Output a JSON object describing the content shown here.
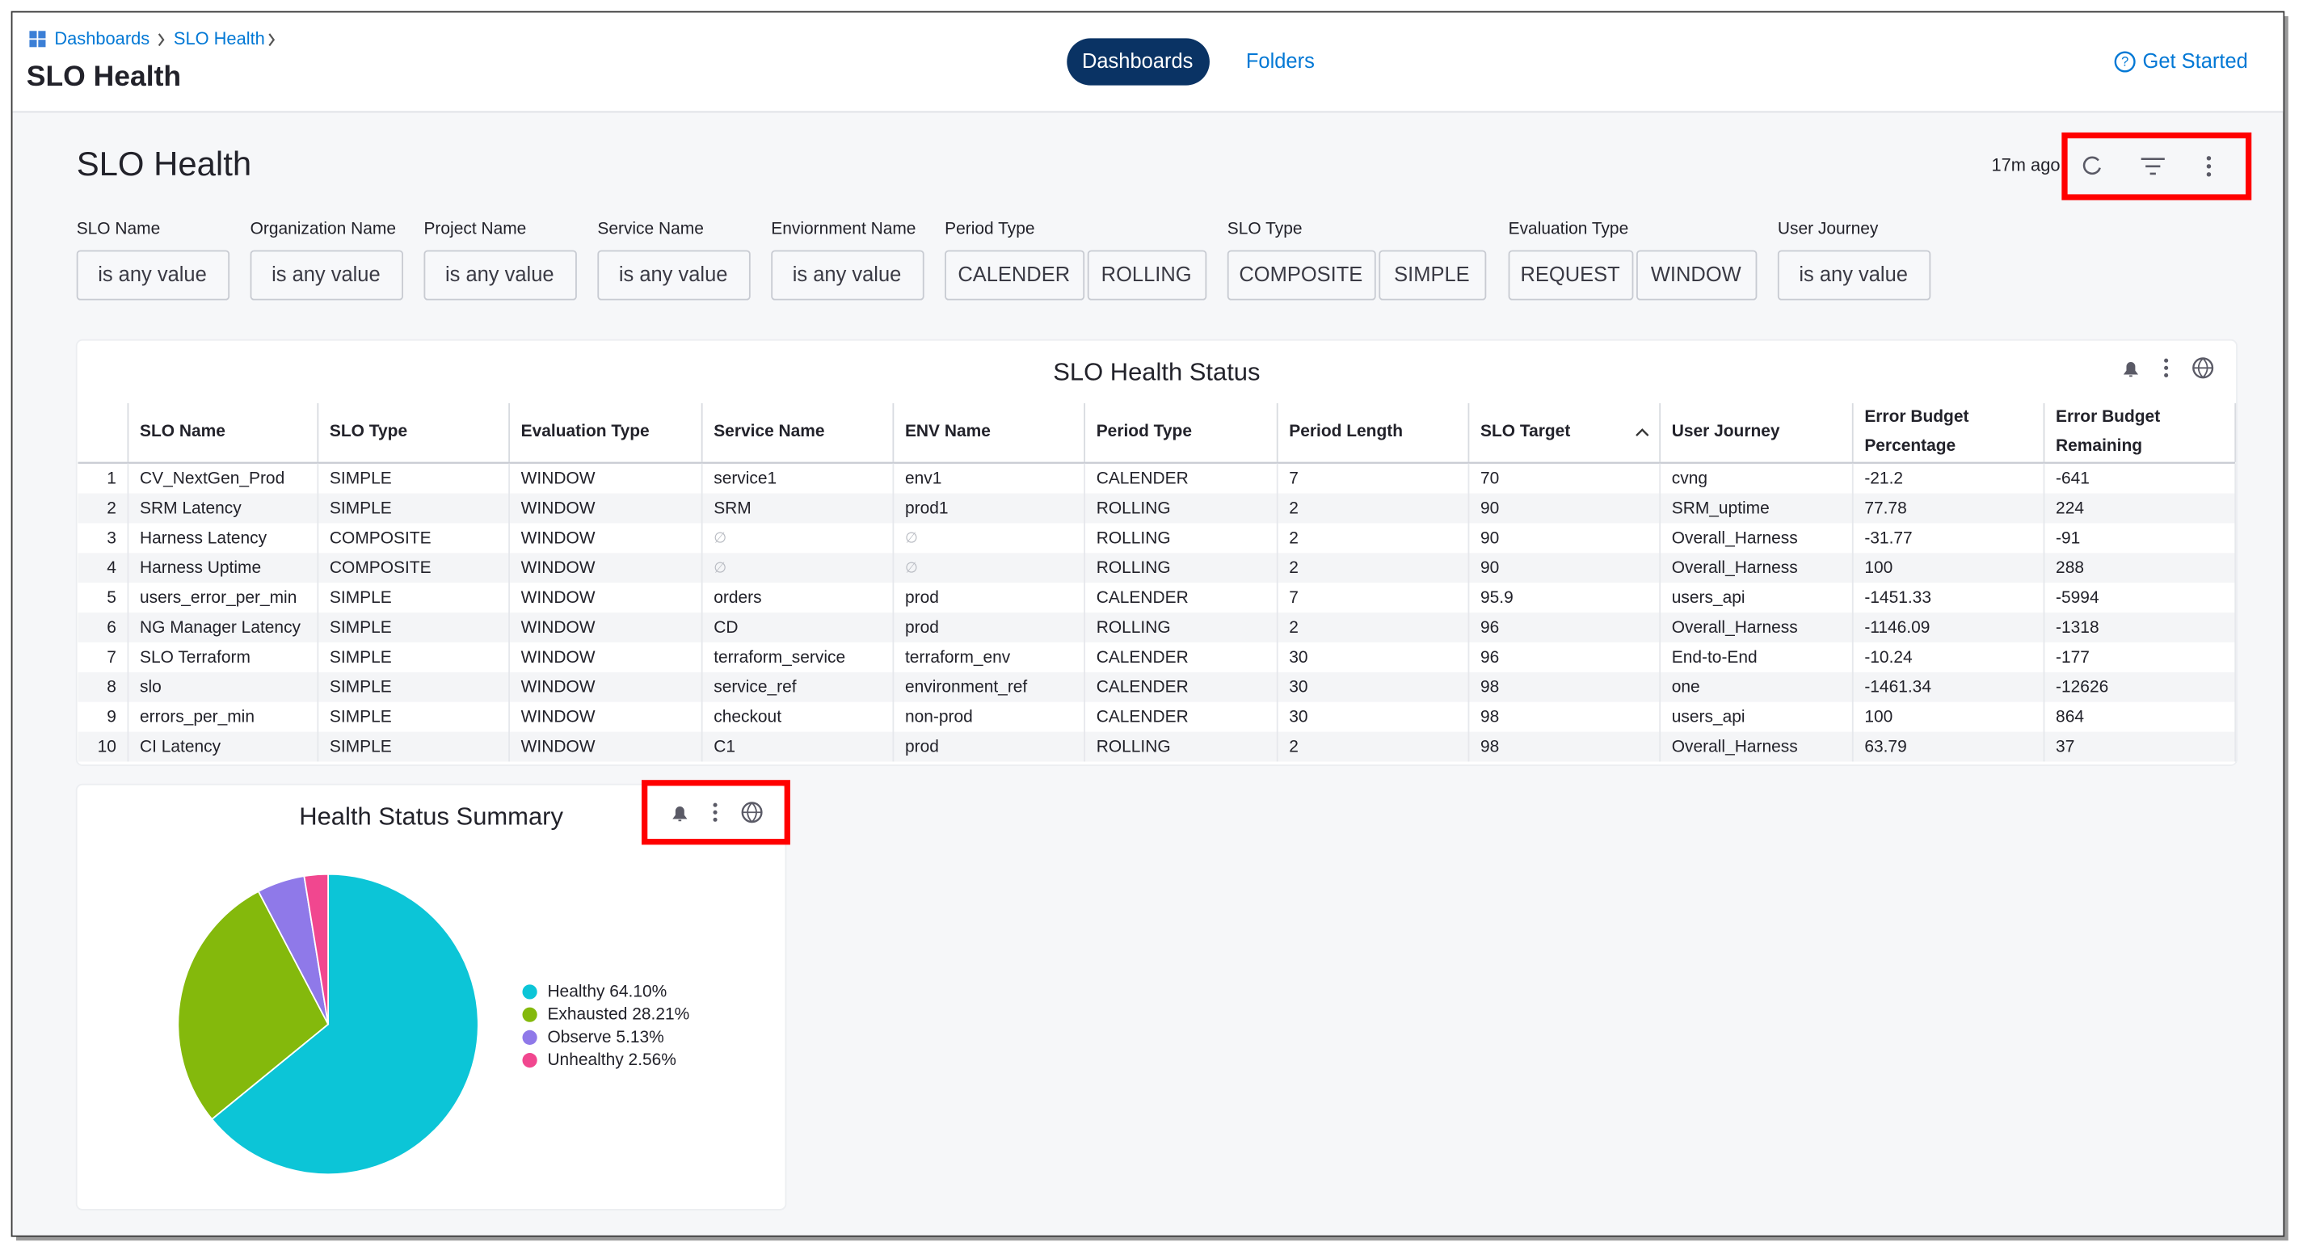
{
  "breadcrumb": [
    "Dashboards",
    "SLO Health"
  ],
  "header": {
    "title": "SLO Health",
    "tabs": [
      "Dashboards",
      "Folders"
    ],
    "help": "Get Started"
  },
  "dashboard": {
    "title": "SLO Health",
    "updated": "17m ago"
  },
  "filters": [
    {
      "label": "SLO Name",
      "options": [
        "is any value"
      ]
    },
    {
      "label": "Organization Name",
      "options": [
        "is any value"
      ]
    },
    {
      "label": "Project Name",
      "options": [
        "is any value"
      ]
    },
    {
      "label": "Service Name",
      "options": [
        "is any value"
      ]
    },
    {
      "label": "Enviornment Name",
      "options": [
        "is any value"
      ]
    },
    {
      "label": "Period Type",
      "options": [
        "CALENDER",
        "ROLLING"
      ]
    },
    {
      "label": "SLO Type",
      "options": [
        "COMPOSITE",
        "SIMPLE"
      ]
    },
    {
      "label": "Evaluation Type",
      "options": [
        "REQUEST",
        "WINDOW"
      ]
    },
    {
      "label": "User Journey",
      "options": [
        "is any value"
      ]
    }
  ],
  "table": {
    "title": "SLO Health Status",
    "columns": [
      [
        "SLO Name"
      ],
      [
        "SLO Type"
      ],
      [
        "Evaluation Type"
      ],
      [
        "Service Name"
      ],
      [
        "ENV Name"
      ],
      [
        "Period Type"
      ],
      [
        "Period Length"
      ],
      [
        "SLO Target"
      ],
      [
        "User Journey"
      ],
      [
        "Error Budget",
        "Percentage"
      ],
      [
        "Error Budget",
        "Remaining"
      ]
    ],
    "rows": [
      [
        "1",
        "CV_NextGen_Prod",
        "SIMPLE",
        "WINDOW",
        "service1",
        "env1",
        "CALENDER",
        "7",
        "70",
        "cvng",
        "-21.2",
        "-641"
      ],
      [
        "2",
        "SRM Latency",
        "SIMPLE",
        "WINDOW",
        "SRM",
        "prod1",
        "ROLLING",
        "2",
        "90",
        "SRM_uptime",
        "77.78",
        "224"
      ],
      [
        "3",
        "Harness Latency",
        "COMPOSITE",
        "WINDOW",
        "∅",
        "∅",
        "ROLLING",
        "2",
        "90",
        "Overall_Harness",
        "-31.77",
        "-91"
      ],
      [
        "4",
        "Harness Uptime",
        "COMPOSITE",
        "WINDOW",
        "∅",
        "∅",
        "ROLLING",
        "2",
        "90",
        "Overall_Harness",
        "100",
        "288"
      ],
      [
        "5",
        "users_error_per_min",
        "SIMPLE",
        "WINDOW",
        "orders",
        "prod",
        "CALENDER",
        "7",
        "95.9",
        "users_api",
        "-1451.33",
        "-5994"
      ],
      [
        "6",
        "NG Manager Latency",
        "SIMPLE",
        "WINDOW",
        "CD",
        "prod",
        "ROLLING",
        "2",
        "96",
        "Overall_Harness",
        "-1146.09",
        "-1318"
      ],
      [
        "7",
        "SLO Terraform",
        "SIMPLE",
        "WINDOW",
        "terraform_service",
        "terraform_env",
        "CALENDER",
        "30",
        "96",
        "End-to-End",
        "-10.24",
        "-177"
      ],
      [
        "8",
        "slo",
        "SIMPLE",
        "WINDOW",
        "service_ref",
        "environment_ref",
        "CALENDER",
        "30",
        "98",
        "one",
        "-1461.34",
        "-12626"
      ],
      [
        "9",
        "errors_per_min",
        "SIMPLE",
        "WINDOW",
        "checkout",
        "non-prod",
        "CALENDER",
        "30",
        "98",
        "users_api",
        "100",
        "864"
      ],
      [
        "10",
        "CI Latency",
        "SIMPLE",
        "WINDOW",
        "C1",
        "prod",
        "ROLLING",
        "2",
        "98",
        "Overall_Harness",
        "63.79",
        "37"
      ]
    ]
  },
  "chart_data": {
    "type": "pie",
    "title": "Health Status Summary",
    "categories": [
      "Healthy",
      "Exhausted",
      "Observe",
      "Unhealthy"
    ],
    "values": [
      64.1,
      28.21,
      5.13,
      2.56
    ],
    "value_labels": [
      "64.10%",
      "28.21%",
      "5.13%",
      "2.56%"
    ],
    "colors": [
      "#0cc5d7",
      "#84b90c",
      "#8f79e9",
      "#f1478f"
    ]
  }
}
